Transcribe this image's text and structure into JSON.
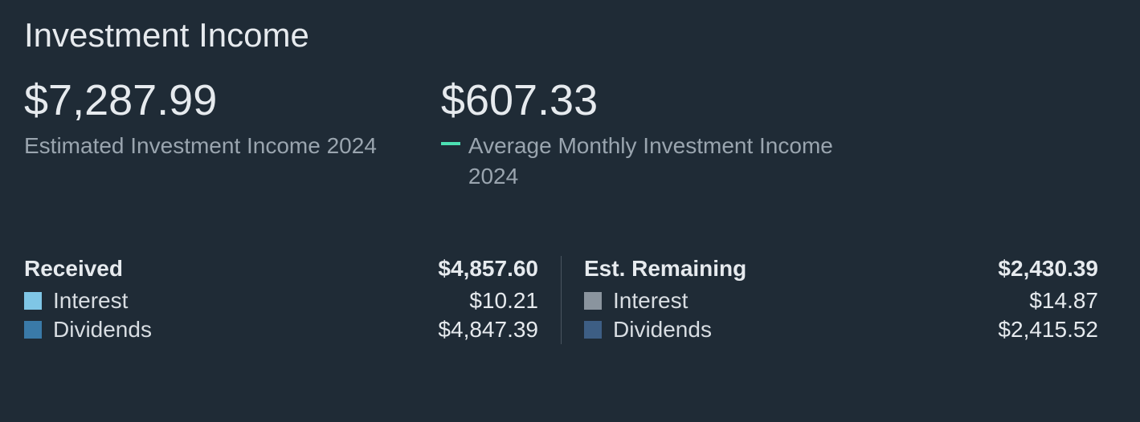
{
  "title": "Investment Income",
  "colors": {
    "background": "#1f2b36",
    "text_primary": "#e6eaee",
    "text_secondary": "#9aa5af",
    "accent_dash": "#4ce0b3",
    "divider": "#4a5560",
    "swatch_received_interest": "#7fc6e6",
    "swatch_received_dividends": "#3a7aa8",
    "swatch_remaining_interest": "#8a949e",
    "swatch_remaining_dividends": "#3d5e84"
  },
  "metrics": {
    "estimated": {
      "value": "$7,287.99",
      "label": "Estimated Investment Income 2024"
    },
    "average_monthly": {
      "value": "$607.33",
      "label": "Average Monthly Investment Income 2024"
    }
  },
  "breakdown": {
    "received": {
      "title": "Received",
      "total": "$4,857.60",
      "items": [
        {
          "label": "Interest",
          "value": "$10.21"
        },
        {
          "label": "Dividends",
          "value": "$4,847.39"
        }
      ]
    },
    "remaining": {
      "title": "Est. Remaining",
      "total": "$2,430.39",
      "items": [
        {
          "label": "Interest",
          "value": "$14.87"
        },
        {
          "label": "Dividends",
          "value": "$2,415.52"
        }
      ]
    }
  }
}
